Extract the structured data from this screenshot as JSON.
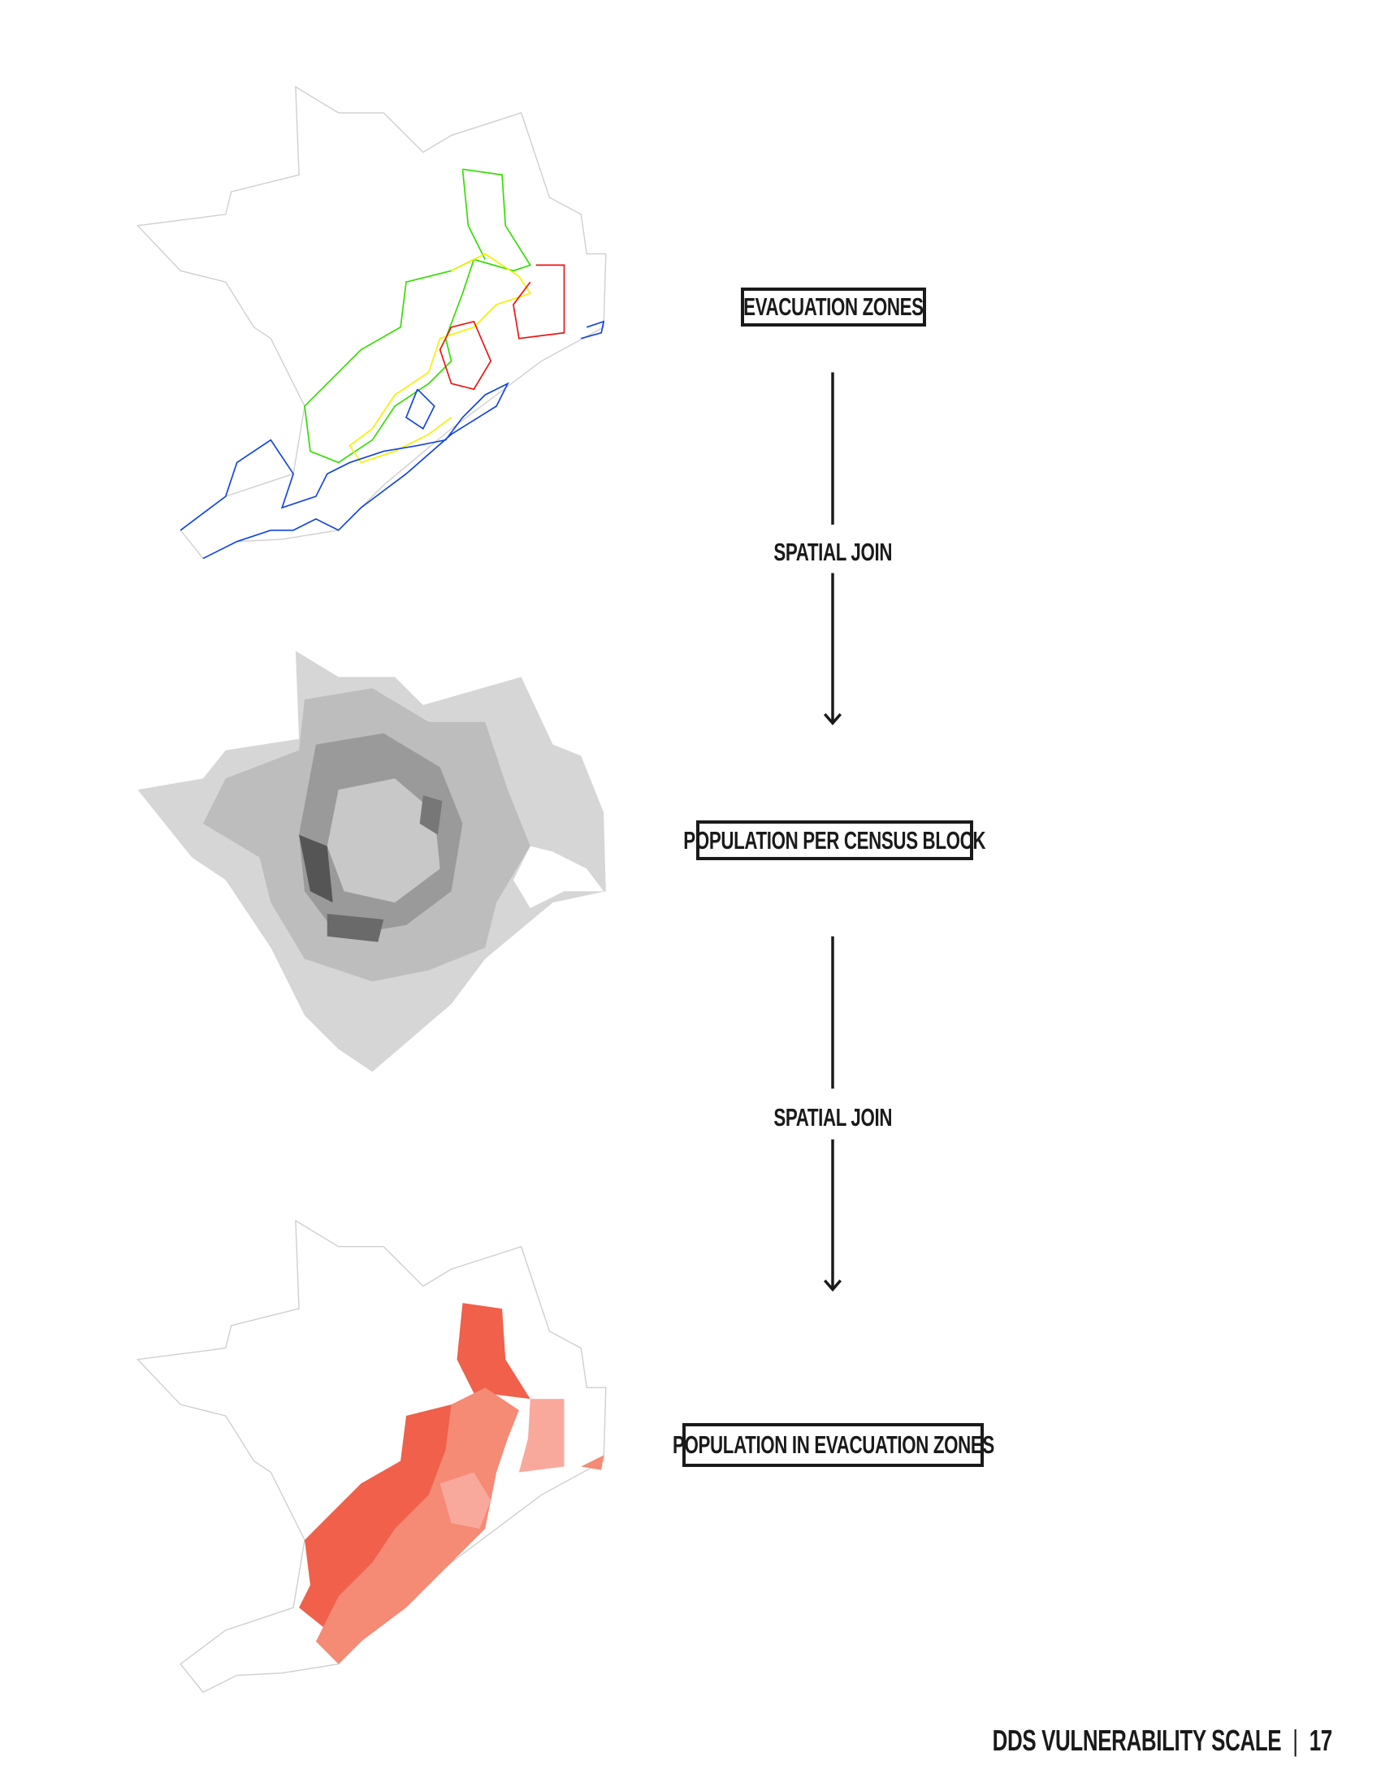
{
  "steps": {
    "evacuation_zones": "EVACUATION ZONES",
    "join_1": "SPATIAL JOIN",
    "population_per_census_block": "POPULATION PER CENSUS BLOCK",
    "join_2": "SPATIAL JOIN",
    "population_in_evacuation_zones": "POPULATION IN EVACUATION ZONES"
  },
  "footer": {
    "title": "DDS VULNERABILITY SCALE",
    "separator": "|",
    "page_number": "17"
  },
  "colors": {
    "zone_green": "#33dd00",
    "zone_yellow": "#f2f200",
    "zone_red": "#ee1111",
    "zone_blue": "#1144dd",
    "population_gray": "#d6d6d6",
    "result_red": "#f0604a",
    "text": "#1a1a1a"
  }
}
